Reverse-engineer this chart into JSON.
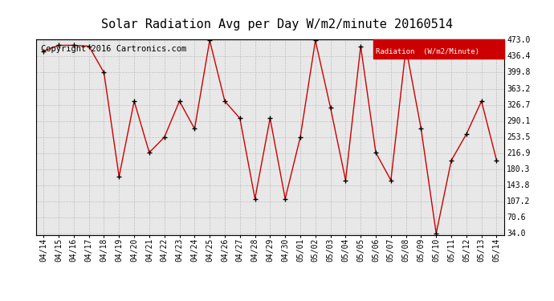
{
  "title": "Solar Radiation Avg per Day W/m2/minute 20160514",
  "copyright": "Copyright 2016 Cartronics.com",
  "legend_label": "Radiation  (W/m2/Minute)",
  "legend_bg": "#cc0000",
  "legend_text_color": "#ffffff",
  "background_color": "#ffffff",
  "plot_bg": "#e8e8e8",
  "grid_color": "#bbbbbb",
  "line_color": "#cc0000",
  "marker_color": "#000000",
  "dates": [
    "04/14",
    "04/15",
    "04/16",
    "04/17",
    "04/18",
    "04/19",
    "04/20",
    "04/21",
    "04/22",
    "04/23",
    "04/24",
    "04/25",
    "04/26",
    "04/27",
    "04/28",
    "04/29",
    "04/30",
    "05/01",
    "05/02",
    "05/03",
    "05/04",
    "05/05",
    "05/06",
    "05/07",
    "05/08",
    "05/09",
    "05/10",
    "05/11",
    "05/12",
    "05/13",
    "05/14"
  ],
  "values": [
    449.0,
    462.0,
    462.0,
    460.0,
    399.8,
    163.0,
    335.0,
    218.0,
    253.0,
    335.0,
    272.0,
    473.0,
    335.0,
    296.0,
    113.0,
    296.0,
    113.0,
    253.0,
    473.0,
    320.0,
    155.0,
    460.0,
    218.0,
    155.0,
    456.0,
    272.0,
    34.0,
    200.0,
    260.0,
    335.0,
    200.0
  ],
  "ylim_min": 34.0,
  "ylim_max": 473.0,
  "ytick_step": 36.6,
  "yticks": [
    34.0,
    70.6,
    107.2,
    143.8,
    180.3,
    216.9,
    253.5,
    290.1,
    326.7,
    363.2,
    399.8,
    436.4,
    473.0
  ],
  "title_fontsize": 11,
  "axis_fontsize": 7,
  "copyright_fontsize": 7.5
}
